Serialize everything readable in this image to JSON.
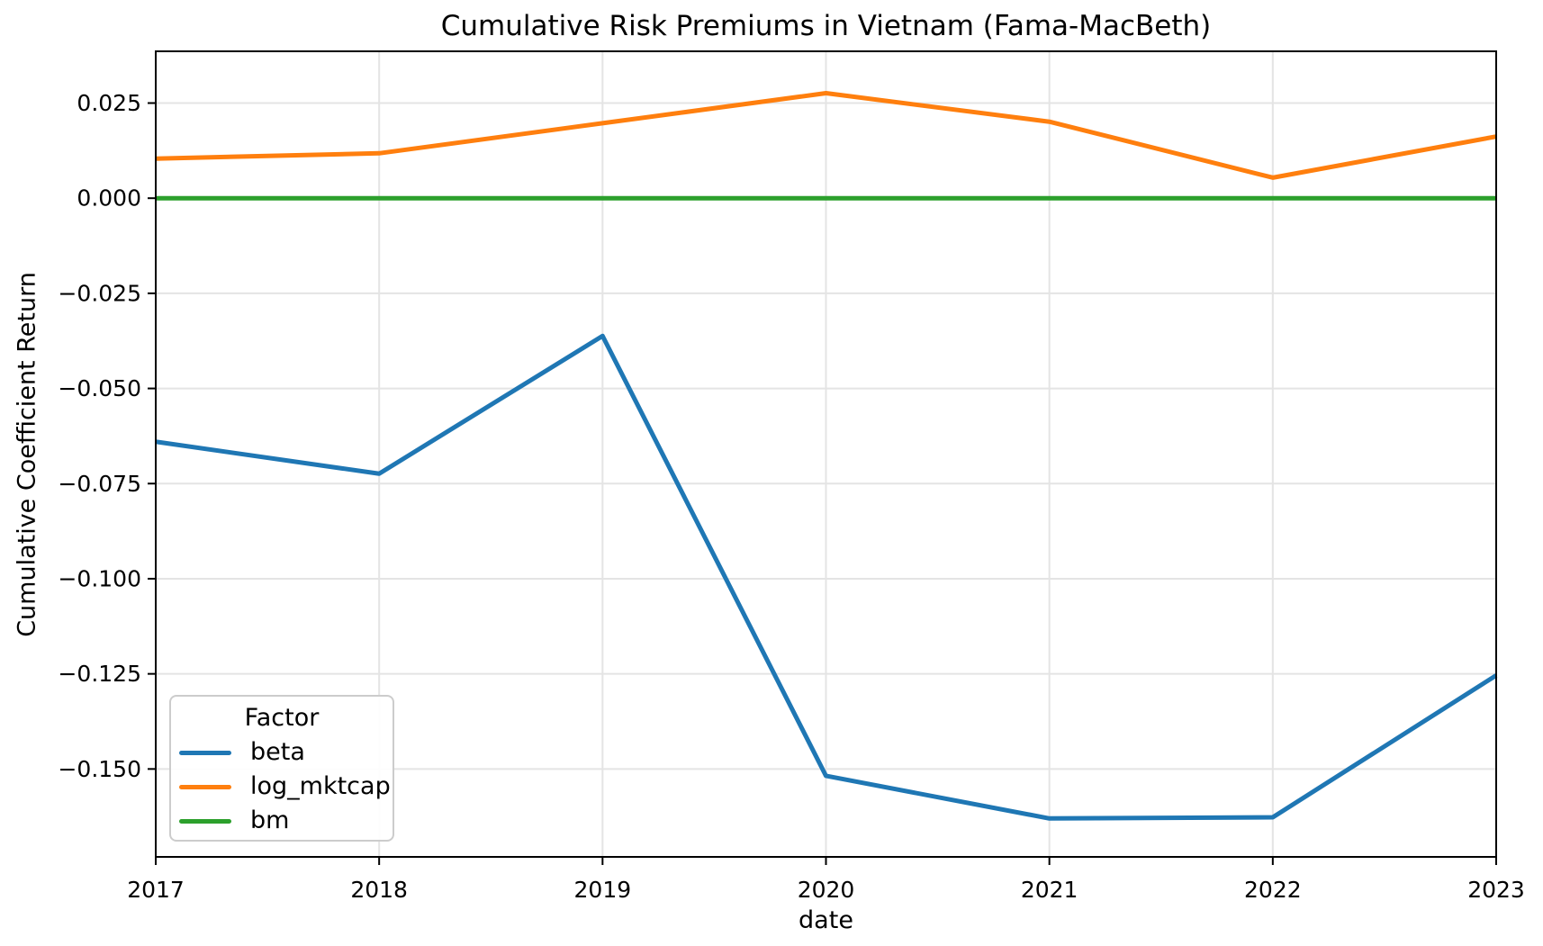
{
  "chart_data": {
    "type": "line",
    "title": "Cumulative Risk Premiums in Vietnam (Fama-MacBeth)",
    "xlabel": "date",
    "ylabel": "Cumulative Coefficient Return",
    "x": [
      2017,
      2018,
      2019,
      2020,
      2021,
      2022,
      2023
    ],
    "xtick_labels": [
      "2017",
      "2018",
      "2019",
      "2020",
      "2021",
      "2022",
      "2023"
    ],
    "series": [
      {
        "name": "beta",
        "color": "#1f77b4",
        "values": [
          -0.064,
          -0.0724,
          -0.0362,
          -0.1518,
          -0.163,
          -0.1627,
          -0.1254
        ]
      },
      {
        "name": "log_mktcap",
        "color": "#ff7f0e",
        "values": [
          0.0104,
          0.0118,
          0.0197,
          0.0276,
          0.0201,
          0.0054,
          0.0162
        ]
      },
      {
        "name": "bm",
        "color": "#2ca02c",
        "values": [
          0.0,
          0.0,
          0.0,
          0.0,
          0.0,
          0.0,
          0.0
        ]
      }
    ],
    "ylim": [
      -0.1731,
      0.0386
    ],
    "yticks": [
      0.025,
      0.0,
      -0.025,
      -0.05,
      -0.075,
      -0.1,
      -0.125,
      -0.15
    ],
    "ytick_labels": [
      "0.025",
      "0.000",
      "−0.025",
      "−0.050",
      "−0.075",
      "−0.100",
      "−0.125",
      "−0.150"
    ],
    "grid": true,
    "grid_color": "#e4e4e4",
    "line_width": 5,
    "legend": {
      "title": "Factor",
      "position": "lower-left"
    }
  }
}
